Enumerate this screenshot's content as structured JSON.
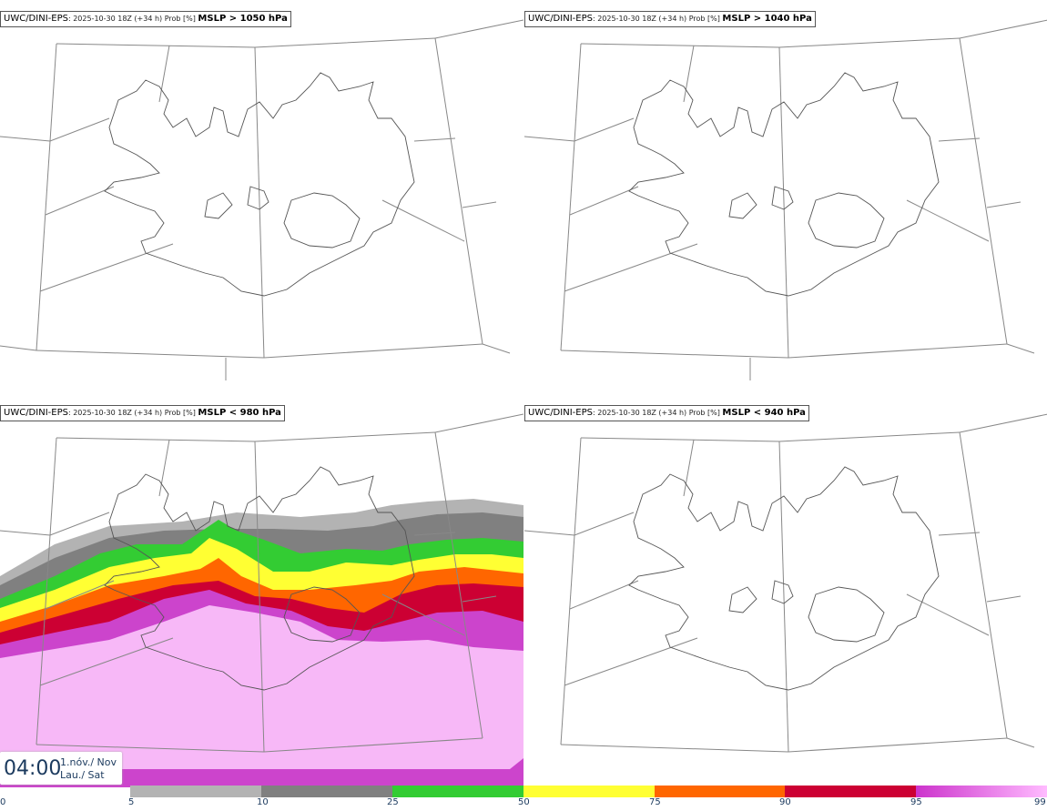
{
  "panels": [
    {
      "model": "UWC/DINI-EPS",
      "meta": ": 2025-10-30 18Z (+34 h) Prob [%] ",
      "threshold": "MSLP > 1050 hPa"
    },
    {
      "model": "UWC/DINI-EPS",
      "meta": ": 2025-10-30 18Z (+34 h) Prob [%] ",
      "threshold": "MSLP > 1040 hPa"
    },
    {
      "model": "UWC/DINI-EPS",
      "meta": ": 2025-10-30 18Z (+34 h) Prob [%] ",
      "threshold": "MSLP < 980 hPa"
    },
    {
      "model": "UWC/DINI-EPS",
      "meta": ": 2025-10-30 18Z (+34 h) Prob [%] ",
      "threshold": "MSLP < 940 hPa"
    }
  ],
  "valid_time": {
    "clock": "04:00",
    "date_line1": "1.nóv./ Nov",
    "date_line2": "Lau./ Sat"
  },
  "colorbar": {
    "ticks": [
      "0",
      "5",
      "10",
      "25",
      "50",
      "75",
      "90",
      "95",
      "99"
    ],
    "colors": [
      "#b3b3b3",
      "#808080",
      "#33cc33",
      "#ffff33",
      "#ff6600",
      "#cc0033",
      "#cc33cc",
      "#ffbbff"
    ]
  },
  "probability_colors": {
    "light_gray": "#b3b3b3",
    "gray": "#808080",
    "green": "#33cc33",
    "yellow": "#ffff33",
    "orange": "#ff6600",
    "red": "#cc0033",
    "purple": "#cc44cc",
    "pink": "#f7b8f7"
  }
}
